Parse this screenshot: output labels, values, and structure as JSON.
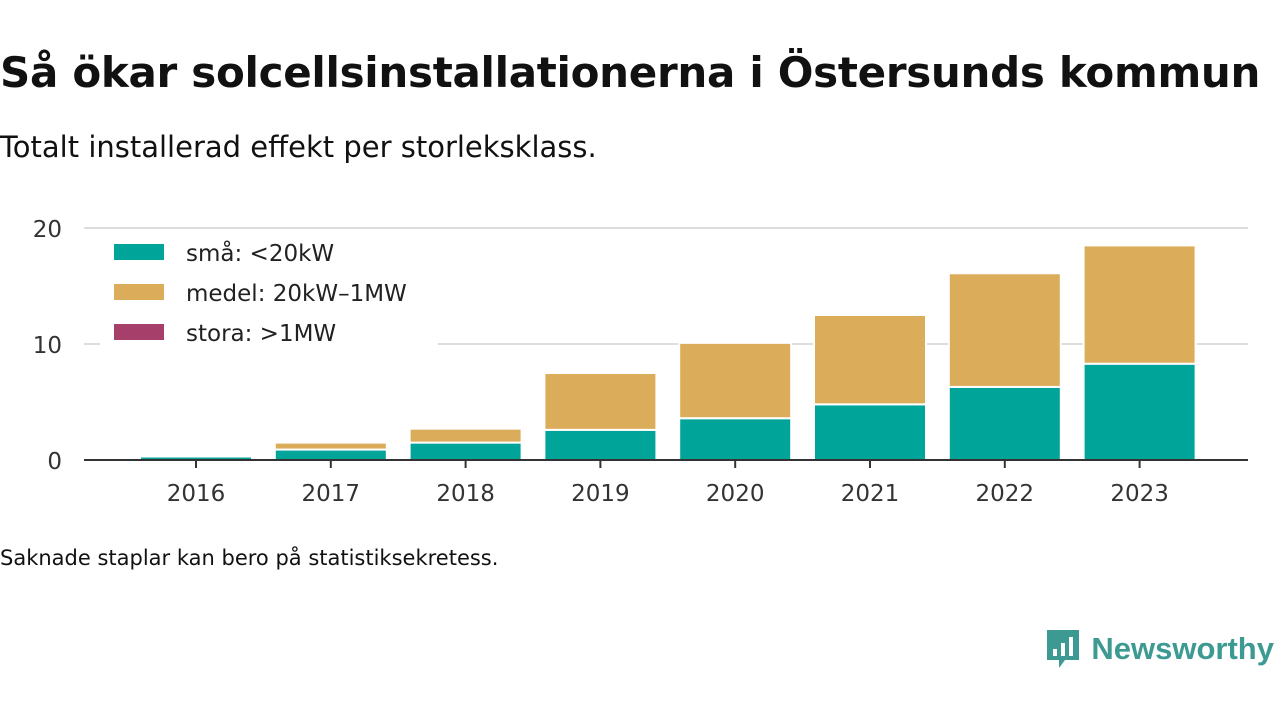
{
  "title": "Så ökar solcellsinstallationerna i Östersunds kommun",
  "subtitle": "Totalt installerad effekt per storleksklass.",
  "footnote": "Saknade staplar kan bero på statistiksekretess.",
  "brand": {
    "name": "Newsworthy",
    "color": "#3d9a92",
    "icon": "chart-bubble-logo-icon"
  },
  "chart_data": {
    "type": "bar",
    "stacked": true,
    "categories": [
      "2016",
      "2017",
      "2018",
      "2019",
      "2020",
      "2021",
      "2022",
      "2023"
    ],
    "series": [
      {
        "name": "små: <20kW",
        "color": "#00a499",
        "values": [
          0.3,
          0.9,
          1.5,
          2.6,
          3.6,
          4.8,
          6.3,
          8.3
        ]
      },
      {
        "name": "medel: 20kW–1MW",
        "color": "#dbad5a",
        "values": [
          0.0,
          0.6,
          1.2,
          4.9,
          6.5,
          7.7,
          9.8,
          10.2
        ]
      },
      {
        "name": "stora: >1MW",
        "color": "#a6406b",
        "values": [
          0,
          0,
          0,
          0,
          0,
          0,
          0,
          0
        ]
      }
    ],
    "ylim": [
      0,
      20
    ],
    "yticks": [
      0,
      10,
      20
    ],
    "grid": true,
    "legend": "top-left",
    "xlabel": "",
    "ylabel": ""
  }
}
